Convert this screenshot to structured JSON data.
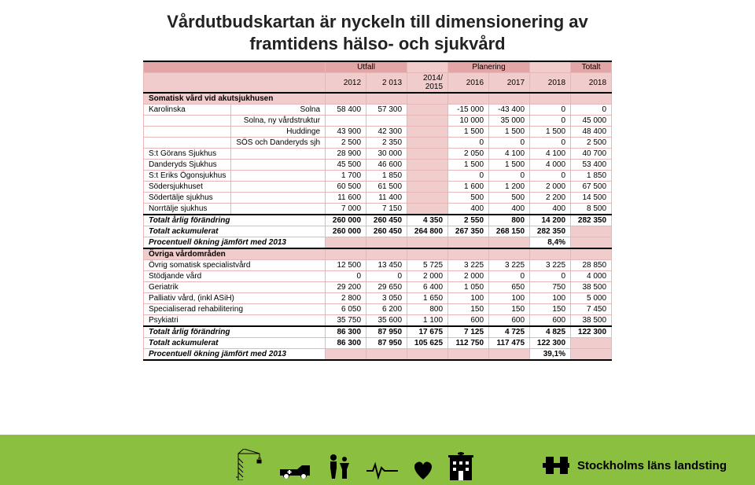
{
  "title_line1": "Vårdutbudskartan är nyckeln till dimensionering av",
  "title_line2": "framtidens hälso- och sjukvård",
  "header": {
    "utfall": "Utfall",
    "planering": "Planering",
    "totalt": "Totalt",
    "y2012": "2012",
    "y2013": "2 013",
    "y2014": "2014/\n2015",
    "y2016": "2016",
    "y2017": "2017",
    "y2018a": "2018",
    "y2018b": "2018"
  },
  "sec1": "Somatisk vård vid akutsjukhusen",
  "rows1": [
    {
      "lbl": "Karolinska",
      "sub": "Solna",
      "v": [
        "58 400",
        "57 300",
        "",
        "-15 000",
        "-43 400",
        "0",
        "0"
      ]
    },
    {
      "lbl": "",
      "sub": "Solna, ny vårdstruktur",
      "v": [
        "",
        "",
        "",
        "10 000",
        "35 000",
        "0",
        "45 000"
      ]
    },
    {
      "lbl": "",
      "sub": "Huddinge",
      "v": [
        "43 900",
        "42 300",
        "",
        "1 500",
        "1 500",
        "1 500",
        "48 400"
      ]
    },
    {
      "lbl": "",
      "sub": "SÖS och Danderyds sjh",
      "v": [
        "2 500",
        "2 350",
        "",
        "0",
        "0",
        "0",
        "2 500"
      ]
    },
    {
      "lbl": "S:t Görans Sjukhus",
      "sub": "",
      "v": [
        "28 900",
        "30 000",
        "",
        "2 050",
        "4 100",
        "4 100",
        "40 700"
      ]
    },
    {
      "lbl": "Danderyds Sjukhus",
      "sub": "",
      "v": [
        "45 500",
        "46 600",
        "",
        "1 500",
        "1 500",
        "4 000",
        "53 400"
      ]
    },
    {
      "lbl": "S:t Eriks Ögonsjukhus",
      "sub": "",
      "v": [
        "1 700",
        "1 850",
        "",
        "0",
        "0",
        "0",
        "1 850"
      ]
    },
    {
      "lbl": "Södersjukhuset",
      "sub": "",
      "v": [
        "60 500",
        "61 500",
        "",
        "1 600",
        "1 200",
        "2 000",
        "67 500"
      ]
    },
    {
      "lbl": "Södertälje sjukhus",
      "sub": "",
      "v": [
        "11 600",
        "11 400",
        "",
        "500",
        "500",
        "2 200",
        "14 500"
      ]
    },
    {
      "lbl": "Norrtälje sjukhus",
      "sub": "",
      "v": [
        "7 000",
        "7 150",
        "",
        "400",
        "400",
        "400",
        "8 500"
      ]
    }
  ],
  "tot1a": {
    "lbl": "Totalt årlig förändring",
    "v": [
      "260 000",
      "260 450",
      "4 350",
      "2 550",
      "800",
      "14 200",
      "282 350"
    ]
  },
  "tot1b": {
    "lbl": "Totalt ackumulerat",
    "v": [
      "260 000",
      "260 450",
      "264 800",
      "267 350",
      "268 150",
      "282 350",
      ""
    ]
  },
  "tot1c": {
    "lbl": "Procentuell ökning jämfört med 2013",
    "v": [
      "",
      "",
      "",
      "",
      "",
      "8,4%",
      ""
    ]
  },
  "sec2": "Övriga vårdområden",
  "rows2": [
    {
      "lbl": "Övrig somatisk specialistvård",
      "v": [
        "12 500",
        "13 450",
        "5 725",
        "3 225",
        "3 225",
        "3 225",
        "28 850"
      ]
    },
    {
      "lbl": "Stödjande vård",
      "v": [
        "0",
        "0",
        "2 000",
        "2 000",
        "0",
        "0",
        "4 000"
      ]
    },
    {
      "lbl": "Geriatrik",
      "v": [
        "29 200",
        "29 650",
        "6 400",
        "1 050",
        "650",
        "750",
        "38 500"
      ]
    },
    {
      "lbl": "Palliativ vård, (inkl ASiH)",
      "v": [
        "2 800",
        "3 050",
        "1 650",
        "100",
        "100",
        "100",
        "5 000"
      ]
    },
    {
      "lbl": "Specialiserad rehabilitering",
      "v": [
        "6 050",
        "6 200",
        "800",
        "150",
        "150",
        "150",
        "7 450"
      ]
    },
    {
      "lbl": "Psykiatri",
      "v": [
        "35 750",
        "35 600",
        "1 100",
        "600",
        "600",
        "600",
        "38 500"
      ]
    }
  ],
  "tot2a": {
    "lbl": "Totalt årlig förändring",
    "v": [
      "86 300",
      "87 950",
      "17 675",
      "7 125",
      "4 725",
      "4 825",
      "122 300"
    ]
  },
  "tot2b": {
    "lbl": "Totalt ackumulerat",
    "v": [
      "86 300",
      "87 950",
      "105 625",
      "112 750",
      "117 475",
      "122 300",
      ""
    ]
  },
  "tot2c": {
    "lbl": "Procentuell ökning jämfört med 2013",
    "v": [
      "",
      "",
      "",
      "",
      "",
      "39,1%",
      ""
    ]
  },
  "logo_text": "Stockholms läns landsting",
  "colors": {
    "band": "#8bbf3f",
    "h1": "#e3a6a6",
    "h2": "#f0cccc",
    "alt": "#fbeeee",
    "border": "#e7b6b6"
  },
  "colwidths": {
    "label": 110,
    "sub": 110,
    "num": 52
  }
}
